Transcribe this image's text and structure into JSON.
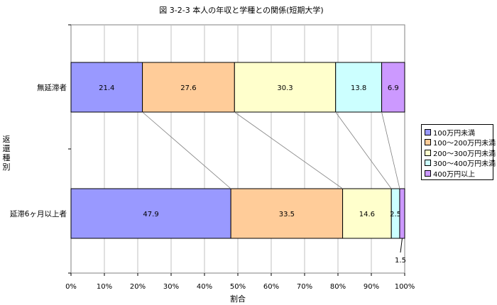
{
  "chart_data": {
    "type": "bar",
    "stacked": "percent",
    "orientation": "horizontal",
    "title": "図 3-2-3  本人の年収と学種との関係(短期大学)",
    "xlabel": "割合",
    "ylabel": "返還種別",
    "xlim": [
      0,
      100
    ],
    "x_ticks": [
      "0%",
      "10%",
      "20%",
      "30%",
      "40%",
      "50%",
      "60%",
      "70%",
      "80%",
      "90%",
      "100%"
    ],
    "grid": "vertical",
    "legend_position": "right",
    "categories": [
      "無延滞者",
      "延滞6ヶ月以上者"
    ],
    "series": [
      {
        "name": "100万円未満",
        "color": "#9999ff",
        "values": [
          21.4,
          47.9
        ],
        "labels": [
          "21.4",
          "47.9"
        ]
      },
      {
        "name": "100～200万円未満",
        "color": "#ffcc99",
        "values": [
          27.6,
          33.5
        ],
        "labels": [
          "27.6",
          "33.5"
        ]
      },
      {
        "name": "200～300万円未満",
        "color": "#ffffcc",
        "values": [
          30.3,
          14.6
        ],
        "labels": [
          "30.3",
          "14.6"
        ]
      },
      {
        "name": "300～400万円未満",
        "color": "#ccffff",
        "values": [
          13.8,
          2.5
        ],
        "labels": [
          "13.8",
          "2.5"
        ]
      },
      {
        "name": "400万円以上",
        "color": "#cc99ff",
        "values": [
          6.9,
          1.5
        ],
        "labels": [
          "6.9",
          "1.5"
        ]
      }
    ]
  }
}
